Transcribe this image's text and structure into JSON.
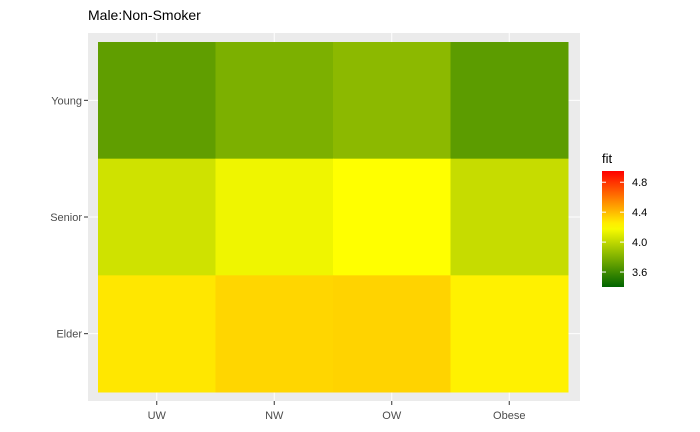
{
  "chart_data": {
    "type": "heatmap",
    "title": "Male:Non-Smoker",
    "xlabel": "",
    "ylabel": "",
    "x_categories": [
      "UW",
      "NW",
      "OW",
      "Obese"
    ],
    "y_categories": [
      "Young",
      "Senior",
      "Elder"
    ],
    "values": [
      [
        3.7,
        3.79,
        3.84,
        3.69
      ],
      [
        4.05,
        4.15,
        4.2,
        4.02
      ],
      [
        4.27,
        4.32,
        4.33,
        4.24
      ]
    ],
    "legend": {
      "title": "fit",
      "ticks": [
        3.6,
        4.0,
        4.4,
        4.8
      ],
      "tick_labels": [
        "3.6",
        "4.0",
        "4.4",
        "4.8"
      ],
      "range": [
        3.4,
        4.95
      ],
      "colors": [
        {
          "value": 3.4,
          "color": "#006400"
        },
        {
          "value": 4.2,
          "color": "#ffff00"
        },
        {
          "value": 4.95,
          "color": "#ff0000"
        }
      ],
      "position": "right"
    },
    "grid": true,
    "panel_background": "#ebebeb",
    "grid_color": "#ffffff"
  }
}
